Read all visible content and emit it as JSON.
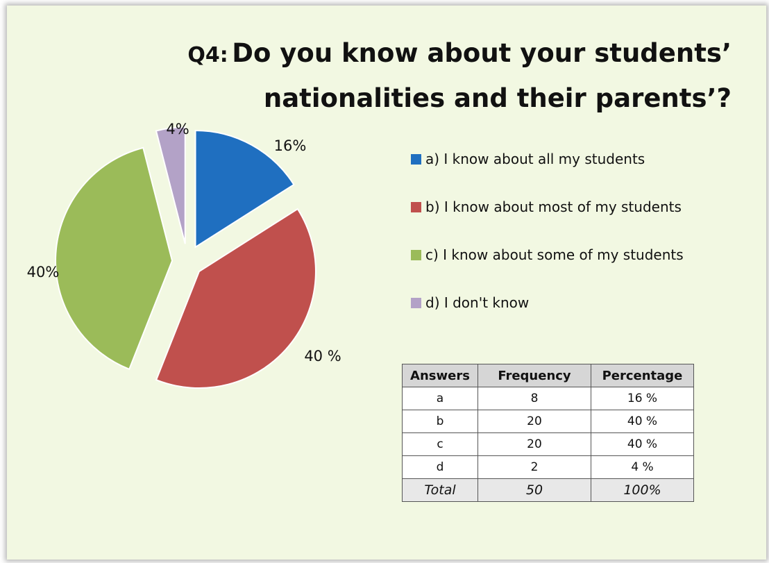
{
  "title": {
    "prefix": "Q4:",
    "line1": "Do you know about your students’",
    "line2": "nationalities and their parents’?"
  },
  "chart_data": {
    "type": "pie",
    "slices": [
      {
        "name": "a) I know about all my students",
        "value": 16,
        "label": "16%",
        "color": "#1f6fc0"
      },
      {
        "name": "b) I know about most of my students",
        "value": 40,
        "label": "40 %",
        "color": "#c0504d"
      },
      {
        "name": "c) I know about some of my students",
        "value": 40,
        "label": "40%",
        "color": "#9bbb59"
      },
      {
        "name": "d) I don't know",
        "value": 4,
        "label": "4%",
        "color": "#b3a2c7"
      }
    ],
    "exploded": true,
    "legend_position": "right"
  },
  "table": {
    "headers": [
      "Answers",
      "Frequency",
      "Percentage"
    ],
    "rows": [
      [
        "a",
        "8",
        "16 %"
      ],
      [
        "b",
        "20",
        "40 %"
      ],
      [
        "c",
        "20",
        "40 %"
      ],
      [
        "d",
        "2",
        "4 %"
      ]
    ],
    "total": [
      "Total",
      "50",
      "100%"
    ]
  }
}
